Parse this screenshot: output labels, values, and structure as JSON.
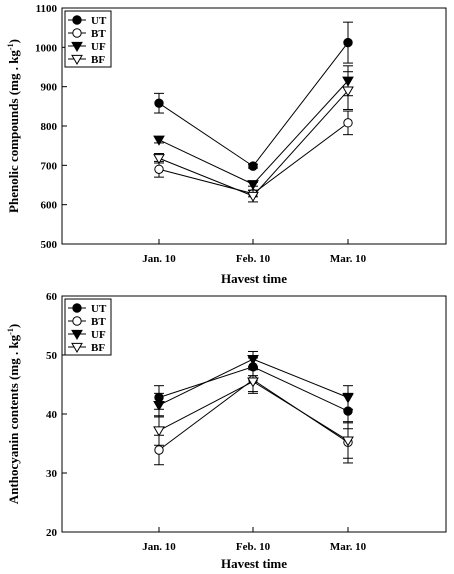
{
  "chart_data": [
    {
      "type": "line",
      "categories": [
        "Jan. 10",
        "Feb. 10",
        "Mar. 10"
      ],
      "xlabel": "Havest time",
      "ylabel": "Phenolic compounds (mg . kg",
      "ylabel_sup": "-1",
      "ylabel_close": ")",
      "ylim": [
        500,
        1100
      ],
      "yticks": [
        500,
        600,
        700,
        800,
        900,
        1000,
        1100
      ],
      "legend_position": "top-left",
      "series": [
        {
          "name": "UT",
          "marker": "circle-filled",
          "values": [
            858,
            698,
            1012
          ],
          "errors": [
            25,
            5,
            52
          ]
        },
        {
          "name": "BT",
          "marker": "circle-open",
          "values": [
            690,
            628,
            808
          ],
          "errors": [
            20,
            8,
            30
          ]
        },
        {
          "name": "UF",
          "marker": "triangle-down-filled",
          "values": [
            765,
            652,
            915
          ],
          "errors": [
            8,
            5,
            38
          ]
        },
        {
          "name": "BF",
          "marker": "triangle-down-open",
          "values": [
            718,
            622,
            890
          ],
          "errors": [
            12,
            15,
            48
          ]
        }
      ]
    },
    {
      "type": "line",
      "categories": [
        "Jan. 10",
        "Feb. 10",
        "Mar. 10"
      ],
      "xlabel": "Havest time",
      "ylabel": "Anthocyanin contents (mg . kg",
      "ylabel_sup": "-1",
      "ylabel_close": ")",
      "ylim": [
        20,
        60
      ],
      "yticks": [
        20,
        30,
        40,
        50,
        60
      ],
      "legend_position": "top-left",
      "series": [
        {
          "name": "UT",
          "marker": "circle-filled",
          "values": [
            42.8,
            48,
            40.5
          ],
          "errors": [
            2,
            1.5,
            3
          ]
        },
        {
          "name": "BT",
          "marker": "circle-open",
          "values": [
            33.9,
            45.8,
            35.2
          ],
          "errors": [
            2.5,
            2,
            3.5
          ]
        },
        {
          "name": "UF",
          "marker": "triangle-down-filled",
          "values": [
            41.5,
            49.3,
            42.8
          ],
          "errors": [
            2,
            1.3,
            2
          ]
        },
        {
          "name": "BF",
          "marker": "triangle-down-open",
          "values": [
            37.2,
            45.5,
            35.5
          ],
          "errors": [
            2.5,
            2,
            3
          ]
        }
      ]
    }
  ]
}
